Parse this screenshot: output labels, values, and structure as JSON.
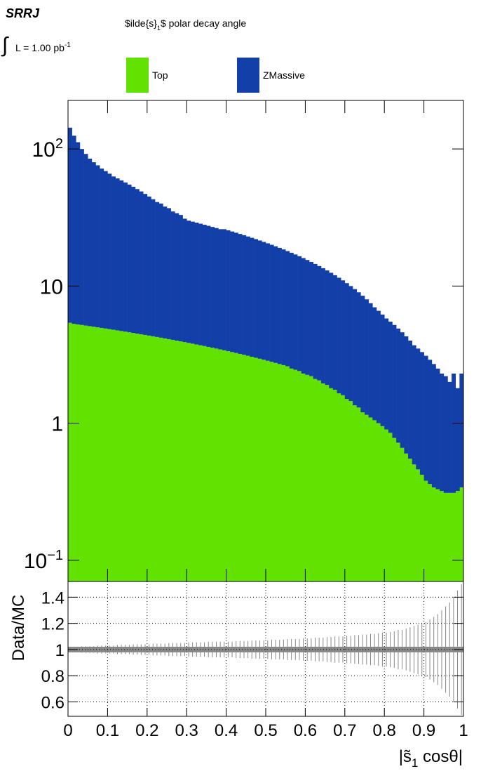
{
  "chart_data": [
    {
      "type": "histogram",
      "stacked": true,
      "log_y": true,
      "label": "SRRJ",
      "lumi": {
        "text": "L = 1.00 pb",
        "exponent": "-1"
      },
      "title": {
        "text": "$ilde{s}",
        "sub": "1",
        "rest": "$ polar decay angle"
      },
      "xlim": [
        0,
        1
      ],
      "bins": [
        0,
        0.01,
        0.02,
        0.03,
        0.04,
        0.05,
        0.06,
        0.07,
        0.08,
        0.09,
        0.1,
        0.11,
        0.12,
        0.13,
        0.14,
        0.15,
        0.16,
        0.17,
        0.18,
        0.19,
        0.2,
        0.21,
        0.22,
        0.23,
        0.24,
        0.25,
        0.26,
        0.27,
        0.28,
        0.29,
        0.3,
        0.31,
        0.32,
        0.33,
        0.34,
        0.35,
        0.36,
        0.37,
        0.38,
        0.39,
        0.4,
        0.41,
        0.42,
        0.43,
        0.44,
        0.45,
        0.46,
        0.47,
        0.48,
        0.49,
        0.5,
        0.51,
        0.52,
        0.53,
        0.54,
        0.55,
        0.56,
        0.57,
        0.58,
        0.59,
        0.6,
        0.61,
        0.62,
        0.63,
        0.64,
        0.65,
        0.66,
        0.67,
        0.68,
        0.69,
        0.7,
        0.71,
        0.72,
        0.73,
        0.74,
        0.75,
        0.76,
        0.77,
        0.78,
        0.79,
        0.8,
        0.81,
        0.82,
        0.83,
        0.84,
        0.85,
        0.86,
        0.87,
        0.88,
        0.89,
        0.9,
        0.91,
        0.92,
        0.93,
        0.94,
        0.95,
        0.96,
        0.97,
        0.98,
        0.99,
        1
      ],
      "ylim": [
        0.07,
        226
      ],
      "yticks": [
        {
          "value": 0.1,
          "label": "10",
          "exponent": "−1"
        },
        1,
        10,
        {
          "value": 100,
          "label": "10",
          "exponent": "2"
        }
      ],
      "series": [
        {
          "name": "Top",
          "color": "#62e200",
          "values": [
            5.4,
            5.3,
            5.25,
            5.2,
            5.15,
            5.1,
            5.05,
            5.0,
            4.95,
            4.9,
            4.85,
            4.8,
            4.75,
            4.7,
            4.65,
            4.6,
            4.55,
            4.5,
            4.45,
            4.4,
            4.35,
            4.3,
            4.25,
            4.2,
            4.15,
            4.1,
            4.05,
            4.0,
            3.95,
            3.9,
            3.85,
            3.8,
            3.75,
            3.7,
            3.65,
            3.6,
            3.55,
            3.5,
            3.45,
            3.4,
            3.35,
            3.3,
            3.25,
            3.2,
            3.15,
            3.1,
            3.05,
            3.0,
            2.95,
            2.9,
            2.85,
            2.8,
            2.75,
            2.7,
            2.65,
            2.6,
            2.5,
            2.45,
            2.4,
            2.3,
            2.25,
            2.2,
            2.1,
            2.05,
            1.95,
            1.9,
            1.8,
            1.75,
            1.65,
            1.6,
            1.5,
            1.45,
            1.35,
            1.3,
            1.2,
            1.15,
            1.1,
            1.05,
            1.0,
            0.95,
            0.9,
            0.85,
            0.78,
            0.72,
            0.66,
            0.6,
            0.55,
            0.5,
            0.46,
            0.42,
            0.38,
            0.36,
            0.34,
            0.33,
            0.32,
            0.31,
            0.31,
            0.31,
            0.32,
            0.34
          ]
        },
        {
          "name": "ZMassive",
          "color": "#133fa8",
          "values": [
            137.6,
            119.7,
            106.75,
            94.8,
            86.85,
            79.9,
            74.95,
            71,
            67.05,
            64.1,
            61.15,
            58.2,
            56.25,
            54.3,
            52.35,
            50.4,
            48.45,
            46.5,
            44.55,
            42.6,
            40.65,
            38.7,
            36.75,
            35.8,
            33.85,
            32.9,
            30.95,
            30,
            29.05,
            27.1,
            26.15,
            25.7,
            25.25,
            24.8,
            24.35,
            23.9,
            23.45,
            23,
            22.55,
            22.6,
            22.15,
            21.7,
            21.25,
            20.8,
            20.35,
            19.9,
            19.45,
            19,
            18.55,
            18.1,
            17.65,
            17.2,
            16.75,
            16.3,
            15.85,
            15.4,
            15,
            14.55,
            14.1,
            13.7,
            13.25,
            12.8,
            12.4,
            11.95,
            11.55,
            11.1,
            10.7,
            10.25,
            9.85,
            9.4,
            9,
            8.55,
            8.15,
            7.7,
            7.3,
            6.85,
            6.4,
            5.95,
            5.6,
            5.25,
            4.9,
            4.65,
            4.42,
            4.18,
            3.94,
            3.7,
            3.45,
            3.2,
            3.04,
            2.88,
            2.72,
            2.54,
            2.36,
            2.17,
            1.98,
            1.89,
            1.69,
            1.99,
            1.48,
            1.96
          ]
        }
      ]
    },
    {
      "type": "ratio",
      "ylabel": "Data/MC",
      "xlabel": {
        "text": "|s̃",
        "sub": "1",
        "rest": " cosθ|"
      },
      "xticks": [
        0,
        0.1,
        0.2,
        0.3,
        0.4,
        0.5,
        0.6,
        0.7,
        0.8,
        0.9,
        1
      ],
      "ylim": [
        0.49,
        1.52
      ],
      "yticks": [
        0.6,
        0.8,
        1,
        1.2,
        1.4
      ],
      "grid": true,
      "color": "#888888",
      "values": [
        1,
        1,
        1,
        1,
        1,
        1,
        1,
        1,
        1,
        1,
        1,
        1,
        1,
        1,
        1,
        1,
        1,
        1,
        1,
        1,
        1,
        1,
        1,
        1,
        1,
        1,
        1,
        1,
        1,
        1,
        1,
        1,
        1,
        1,
        1,
        1,
        1,
        1,
        1,
        1,
        1,
        1,
        1,
        1,
        1,
        1,
        1,
        1,
        1,
        1,
        1,
        1,
        1,
        1,
        1,
        1,
        1,
        1,
        1,
        1,
        1,
        1,
        1,
        1,
        1,
        1,
        1,
        1,
        1,
        1,
        1,
        1,
        1,
        1,
        1,
        1,
        1,
        1,
        1,
        1,
        1,
        1,
        1,
        1,
        1,
        1,
        1,
        1,
        1,
        1,
        1,
        1,
        1,
        1,
        1,
        1,
        1,
        1,
        1,
        1
      ],
      "errors": [
        0.02,
        0.02,
        0.02,
        0.025,
        0.025,
        0.025,
        0.025,
        0.03,
        0.03,
        0.03,
        0.03,
        0.03,
        0.035,
        0.035,
        0.035,
        0.035,
        0.04,
        0.04,
        0.04,
        0.04,
        0.04,
        0.045,
        0.045,
        0.045,
        0.045,
        0.05,
        0.05,
        0.05,
        0.05,
        0.05,
        0.055,
        0.055,
        0.055,
        0.055,
        0.055,
        0.06,
        0.06,
        0.06,
        0.06,
        0.06,
        0.06,
        0.06,
        0.065,
        0.065,
        0.065,
        0.065,
        0.07,
        0.07,
        0.07,
        0.07,
        0.07,
        0.075,
        0.075,
        0.075,
        0.075,
        0.08,
        0.08,
        0.08,
        0.08,
        0.085,
        0.085,
        0.085,
        0.09,
        0.09,
        0.09,
        0.095,
        0.095,
        0.1,
        0.1,
        0.1,
        0.105,
        0.105,
        0.11,
        0.11,
        0.115,
        0.115,
        0.12,
        0.12,
        0.125,
        0.13,
        0.13,
        0.135,
        0.14,
        0.15,
        0.15,
        0.16,
        0.17,
        0.18,
        0.19,
        0.2,
        0.21,
        0.23,
        0.25,
        0.27,
        0.3,
        0.33,
        0.36,
        0.4,
        0.45,
        0.5
      ]
    }
  ]
}
